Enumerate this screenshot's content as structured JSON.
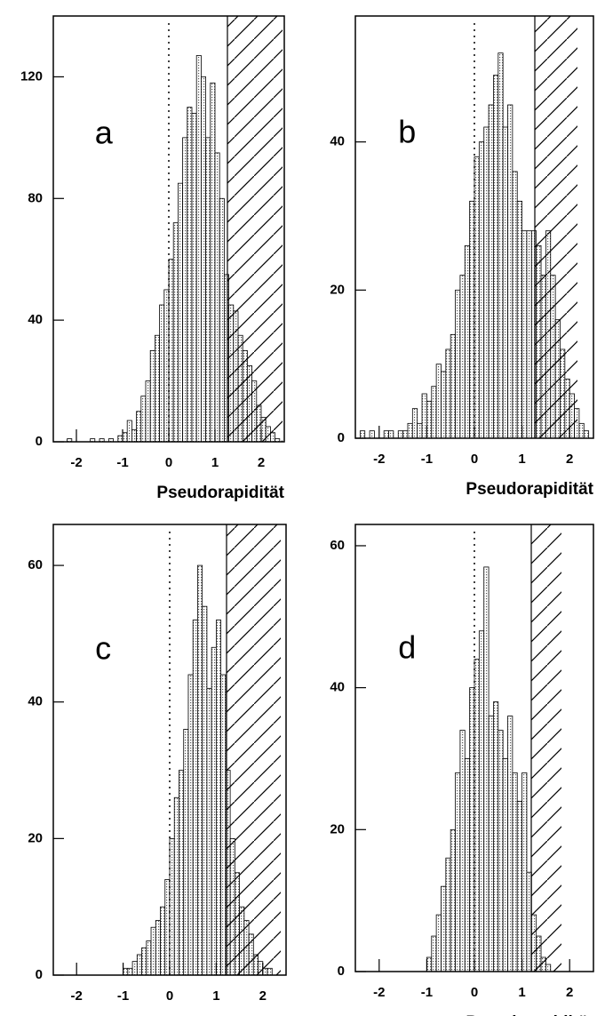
{
  "chart_data": [
    {
      "type": "histogram",
      "label": "a",
      "xlabel": "Pseudorapidität",
      "color": "#555555",
      "bins": [
        -2.5,
        -2.4,
        -2.3,
        -2.2,
        -2.1,
        -2.0,
        -1.9,
        -1.8,
        -1.7,
        -1.6,
        -1.5,
        -1.4,
        -1.3,
        -1.2,
        -1.1,
        -1.0,
        -0.9,
        -0.8,
        -0.7,
        -0.6,
        -0.5,
        -0.4,
        -0.3,
        -0.2,
        -0.1,
        0,
        0.1,
        0.2,
        0.3,
        0.4,
        0.5,
        0.6,
        0.7,
        0.8,
        0.9,
        1.0,
        1.1,
        1.2,
        1.3,
        1.4,
        1.5,
        1.6,
        1.7,
        1.8,
        1.9,
        2.0,
        2.1,
        2.2,
        2.3,
        2.4,
        2.5
      ],
      "values": [
        0,
        0,
        0,
        1,
        0,
        0,
        0,
        0,
        1,
        0,
        1,
        0,
        1,
        0,
        2,
        3,
        7,
        4,
        10,
        15,
        20,
        30,
        35,
        45,
        50,
        60,
        72,
        85,
        100,
        110,
        108,
        127,
        120,
        100,
        118,
        95,
        80,
        55,
        45,
        43,
        35,
        30,
        25,
        20,
        12,
        8,
        5,
        3,
        1,
        0
      ],
      "xlim": [
        -2.5,
        2.5
      ],
      "xticks": [
        -2,
        -1,
        0,
        1,
        2
      ],
      "ylim": [
        0,
        140
      ],
      "yticks": [
        0,
        40,
        80,
        120
      ]
    },
    {
      "type": "histogram",
      "label": "b",
      "xlabel": "Pseudorapidität",
      "color": "#555555",
      "bins": [
        -2.5,
        -2.4,
        -2.3,
        -2.2,
        -2.1,
        -2.0,
        -1.9,
        -1.8,
        -1.7,
        -1.6,
        -1.5,
        -1.4,
        -1.3,
        -1.2,
        -1.1,
        -1.0,
        -0.9,
        -0.8,
        -0.7,
        -0.6,
        -0.5,
        -0.4,
        -0.3,
        -0.2,
        -0.1,
        0,
        0.1,
        0.2,
        0.3,
        0.4,
        0.5,
        0.6,
        0.7,
        0.8,
        0.9,
        1.0,
        1.1,
        1.2,
        1.3,
        1.4,
        1.5,
        1.6,
        1.7,
        1.8,
        1.9,
        2.0,
        2.1,
        2.2,
        2.3,
        2.4,
        2.5
      ],
      "values": [
        0,
        1,
        0,
        1,
        0,
        0,
        1,
        1,
        0,
        1,
        1,
        2,
        4,
        2,
        6,
        5,
        7,
        10,
        9,
        12,
        14,
        20,
        22,
        26,
        32,
        38,
        40,
        42,
        45,
        49,
        52,
        42,
        45,
        36,
        32,
        28,
        28,
        28,
        26,
        22,
        28,
        22,
        16,
        12,
        8,
        6,
        4,
        2,
        1,
        0
      ],
      "xlim": [
        -2.5,
        2.5
      ],
      "xticks": [
        -2,
        -1,
        0,
        1,
        2
      ],
      "ylim": [
        0,
        57
      ],
      "yticks": [
        0,
        20,
        40
      ]
    },
    {
      "type": "histogram",
      "label": "c",
      "xlabel": "Pseudorapidität",
      "color": "#555555",
      "bins": [
        -2.5,
        -2.4,
        -2.3,
        -2.2,
        -2.1,
        -2.0,
        -1.9,
        -1.8,
        -1.7,
        -1.6,
        -1.5,
        -1.4,
        -1.3,
        -1.2,
        -1.1,
        -1.0,
        -0.9,
        -0.8,
        -0.7,
        -0.6,
        -0.5,
        -0.4,
        -0.3,
        -0.2,
        -0.1,
        0,
        0.1,
        0.2,
        0.3,
        0.4,
        0.5,
        0.6,
        0.7,
        0.8,
        0.9,
        1.0,
        1.1,
        1.2,
        1.3,
        1.4,
        1.5,
        1.6,
        1.7,
        1.8,
        1.9,
        2.0,
        2.1,
        2.2,
        2.3,
        2.4,
        2.5
      ],
      "values": [
        0,
        0,
        0,
        0,
        0,
        0,
        0,
        0,
        0,
        0,
        0,
        0,
        0,
        0,
        0,
        1,
        1,
        2,
        3,
        4,
        5,
        7,
        8,
        10,
        14,
        20,
        26,
        30,
        36,
        44,
        52,
        60,
        54,
        42,
        48,
        52,
        44,
        30,
        20,
        15,
        10,
        8,
        6,
        3,
        2,
        1,
        1,
        0,
        0,
        0
      ],
      "xlim": [
        -2.5,
        2.5
      ],
      "xticks": [
        -2,
        -1,
        0,
        1,
        2
      ],
      "ylim": [
        0,
        66
      ],
      "yticks": [
        0,
        20,
        40,
        60
      ]
    },
    {
      "type": "histogram",
      "label": "d",
      "xlabel": "Pseudorapidität",
      "color": "#555555",
      "bins": [
        -2.5,
        -2.4,
        -2.3,
        -2.2,
        -2.1,
        -2.0,
        -1.9,
        -1.8,
        -1.7,
        -1.6,
        -1.5,
        -1.4,
        -1.3,
        -1.2,
        -1.1,
        -1.0,
        -0.9,
        -0.8,
        -0.7,
        -0.6,
        -0.5,
        -0.4,
        -0.3,
        -0.2,
        -0.1,
        0,
        0.1,
        0.2,
        0.3,
        0.4,
        0.5,
        0.6,
        0.7,
        0.8,
        0.9,
        1.0,
        1.1,
        1.2,
        1.3,
        1.4,
        1.5,
        1.6,
        1.7,
        1.8,
        1.9,
        2.0,
        2.1,
        2.2,
        2.3,
        2.4,
        2.5
      ],
      "values": [
        0,
        0,
        0,
        0,
        0,
        0,
        0,
        0,
        0,
        0,
        0,
        0,
        0,
        0,
        0,
        2,
        5,
        8,
        12,
        16,
        20,
        28,
        34,
        30,
        40,
        44,
        48,
        57,
        36,
        38,
        34,
        30,
        36,
        28,
        24,
        28,
        14,
        8,
        5,
        2,
        1,
        0,
        0,
        0,
        0,
        0,
        0,
        0,
        0,
        0
      ],
      "xlim": [
        -2.5,
        2.5
      ],
      "xticks": [
        -2,
        -1,
        0,
        1,
        2
      ],
      "ylim": [
        0,
        63
      ],
      "yticks": [
        0,
        20,
        40,
        60
      ]
    }
  ]
}
